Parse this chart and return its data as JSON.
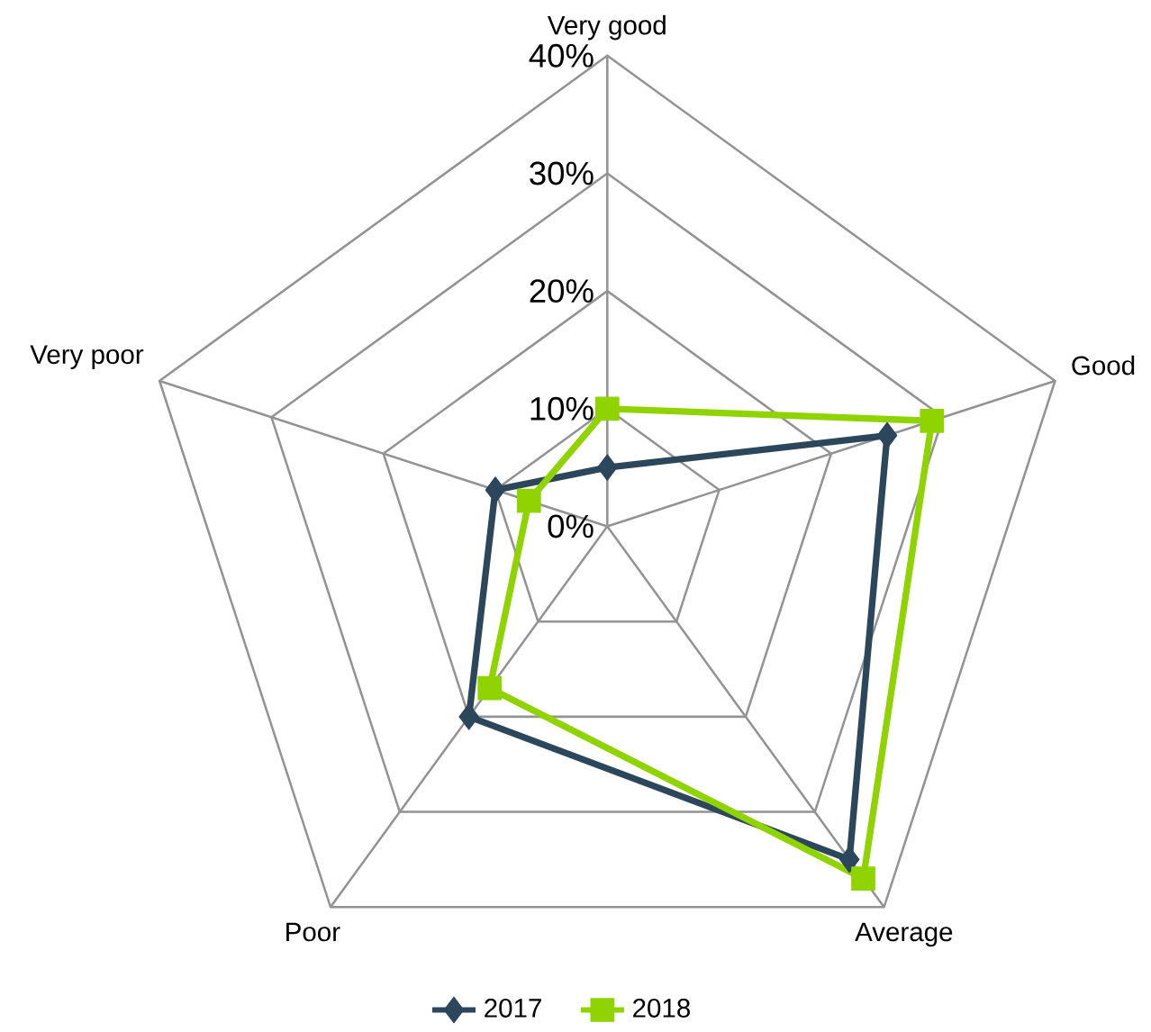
{
  "chart_data": {
    "type": "radar",
    "categories": [
      "Very good",
      "Good",
      "Average",
      "Poor",
      "Very poor"
    ],
    "series": [
      {
        "name": "2017",
        "color": "#2c465c",
        "marker": "diamond",
        "values": [
          5,
          25,
          35,
          20,
          10
        ]
      },
      {
        "name": "2018",
        "color": "#8fd400",
        "marker": "square",
        "values": [
          10,
          29,
          37,
          17,
          7
        ]
      }
    ],
    "ylim": [
      0,
      40
    ],
    "yticks": [
      {
        "value": 0,
        "label": "0%"
      },
      {
        "value": 10,
        "label": "10%"
      },
      {
        "value": 20,
        "label": "20%"
      },
      {
        "value": 30,
        "label": "30%"
      },
      {
        "value": 40,
        "label": "40%"
      }
    ],
    "grid": true,
    "legend": "bottom"
  }
}
